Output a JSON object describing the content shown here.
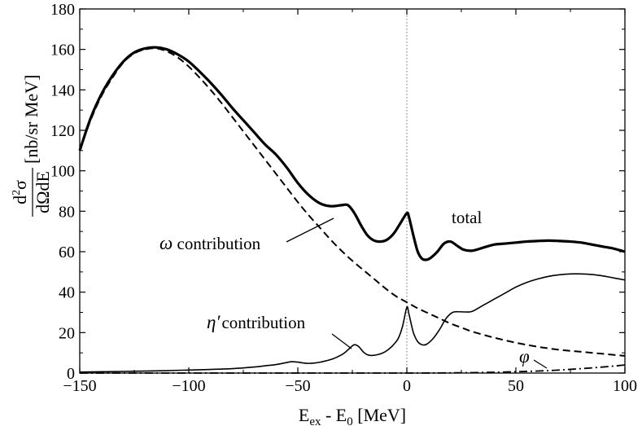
{
  "chart_data": {
    "type": "line",
    "title": "",
    "xlabel": {
      "base": "E",
      "sub1": "ex",
      "mid": " - E",
      "sub2": "0",
      "unit": " [MeV]"
    },
    "ylabel": {
      "num_d": "d",
      "num_sup": "2",
      "num_sigma": "σ",
      "den": "dΩdE",
      "unit": "[nb/sr MeV]"
    },
    "xlim": [
      -150,
      100
    ],
    "ylim": [
      0,
      180
    ],
    "xticks": [
      -150,
      -100,
      -50,
      0,
      50,
      100
    ],
    "xtick_labels": [
      "−150",
      "−100",
      "−50",
      "0",
      "50",
      "100"
    ],
    "yticks": [
      0,
      20,
      40,
      60,
      80,
      100,
      120,
      140,
      160,
      180
    ],
    "ytick_labels": [
      "0",
      "20",
      "40",
      "60",
      "80",
      "100",
      "120",
      "140",
      "160",
      "180"
    ],
    "vline_x": 0,
    "series": [
      {
        "name": "total",
        "style": "solid-thick",
        "x": [
          -150,
          -145,
          -140,
          -135,
          -130,
          -125,
          -120,
          -115,
          -110,
          -105,
          -100,
          -95,
          -90,
          -85,
          -80,
          -75,
          -70,
          -65,
          -60,
          -55,
          -50,
          -45,
          -40,
          -35,
          -30,
          -27,
          -24,
          -21,
          -18,
          -15,
          -12,
          -9,
          -6,
          -3,
          0,
          1,
          3,
          5,
          7,
          9,
          11,
          14,
          17,
          20,
          23,
          26,
          30,
          35,
          40,
          45,
          50,
          55,
          60,
          65,
          70,
          75,
          80,
          85,
          90,
          95,
          100
        ],
        "y": [
          110,
          126,
          138,
          147,
          154,
          158.5,
          160.5,
          161,
          160,
          157.5,
          154,
          149,
          143.5,
          137.5,
          131,
          125,
          119,
          113,
          108,
          101.5,
          94,
          88,
          84,
          82.5,
          83,
          83,
          79,
          73,
          68,
          65.5,
          65,
          66,
          69,
          74,
          79,
          77,
          68,
          60,
          56.5,
          56,
          57,
          60,
          64,
          65,
          63,
          61,
          60.5,
          62,
          63.5,
          64,
          64.5,
          65,
          65.3,
          65.5,
          65.3,
          65,
          64.5,
          63.5,
          62.5,
          61.5,
          60
        ]
      },
      {
        "name": "ω contribution",
        "style": "dashed",
        "x": [
          -150,
          -145,
          -140,
          -135,
          -130,
          -125,
          -120,
          -115,
          -110,
          -105,
          -100,
          -95,
          -90,
          -85,
          -80,
          -75,
          -70,
          -65,
          -60,
          -55,
          -50,
          -45,
          -40,
          -35,
          -30,
          -25,
          -20,
          -15,
          -10,
          -5,
          0,
          5,
          10,
          15,
          20,
          25,
          30,
          40,
          50,
          60,
          70,
          80,
          90,
          100
        ],
        "y": [
          110,
          125,
          137,
          146,
          153.5,
          158,
          160,
          160.5,
          159,
          156,
          151.5,
          146,
          140,
          133.5,
          126.5,
          119.5,
          112.5,
          105.5,
          98.5,
          91.5,
          84.5,
          78,
          72,
          66,
          60.5,
          55.5,
          51,
          46.5,
          42,
          38,
          35,
          32,
          29.5,
          27,
          24.5,
          22.5,
          20.5,
          17.5,
          15,
          13,
          11.5,
          10.5,
          9.5,
          8.5
        ]
      },
      {
        "name": "η′ contribution",
        "style": "solid-thin",
        "x": [
          -150,
          -130,
          -110,
          -100,
          -90,
          -80,
          -70,
          -65,
          -60,
          -56,
          -53,
          -50,
          -46,
          -42,
          -38,
          -34,
          -30,
          -28,
          -26,
          -24,
          -22,
          -20,
          -18,
          -16,
          -13,
          -10,
          -7,
          -4,
          -2,
          0,
          1,
          3,
          5,
          7,
          9,
          12,
          15,
          18,
          21,
          24,
          27,
          30,
          35,
          40,
          45,
          50,
          55,
          60,
          65,
          70,
          75,
          80,
          85,
          90,
          95,
          100
        ],
        "y": [
          0.5,
          0.8,
          1.2,
          1.5,
          1.8,
          2.2,
          3,
          3.6,
          4.2,
          5,
          5.6,
          5.4,
          4.8,
          5,
          5.8,
          7,
          9,
          10.5,
          12.5,
          14,
          13,
          10.5,
          9,
          8.7,
          9.2,
          10.5,
          13,
          17,
          23,
          32.5,
          29,
          20,
          15.5,
          14,
          14.2,
          17,
          21.5,
          27,
          30,
          30.3,
          30.2,
          30.5,
          33.5,
          36.5,
          39.5,
          42.5,
          44.8,
          46.5,
          47.8,
          48.6,
          49,
          49,
          48.7,
          48,
          47,
          46
        ]
      },
      {
        "name": "φ",
        "style": "dash-dot",
        "x": [
          -150,
          -100,
          -50,
          0,
          20,
          40,
          60,
          70,
          80,
          90,
          100
        ],
        "y": [
          0,
          0,
          0,
          0,
          0.1,
          0.4,
          1.0,
          1.5,
          2.2,
          3.0,
          4.0
        ]
      }
    ],
    "annotations": [
      {
        "key": "total",
        "text": "total"
      },
      {
        "key": "omega",
        "symbol": "ω",
        "text": " contribution"
      },
      {
        "key": "etap",
        "symbol": "η′",
        "text": "contribution"
      },
      {
        "key": "phi",
        "symbol": "φ",
        "text": ""
      }
    ]
  }
}
